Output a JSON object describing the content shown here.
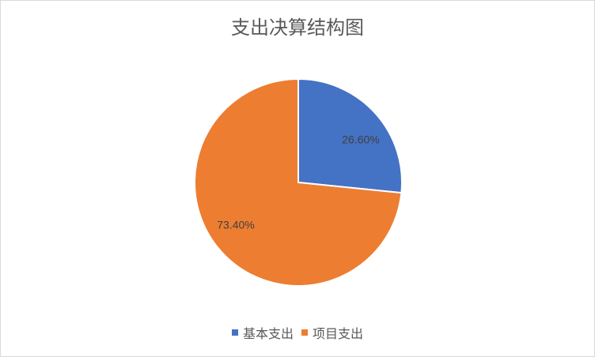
{
  "chart_data": {
    "type": "pie",
    "title": "支出决算结构图",
    "categories": [
      "基本支出",
      "项目支出"
    ],
    "values": [
      26.6,
      73.4
    ],
    "data_labels": [
      "26.60%",
      "73.40%"
    ],
    "colors": [
      "#4472C4",
      "#ED7D31"
    ],
    "legend_position": "bottom",
    "start_angle": "top, clockwise"
  }
}
